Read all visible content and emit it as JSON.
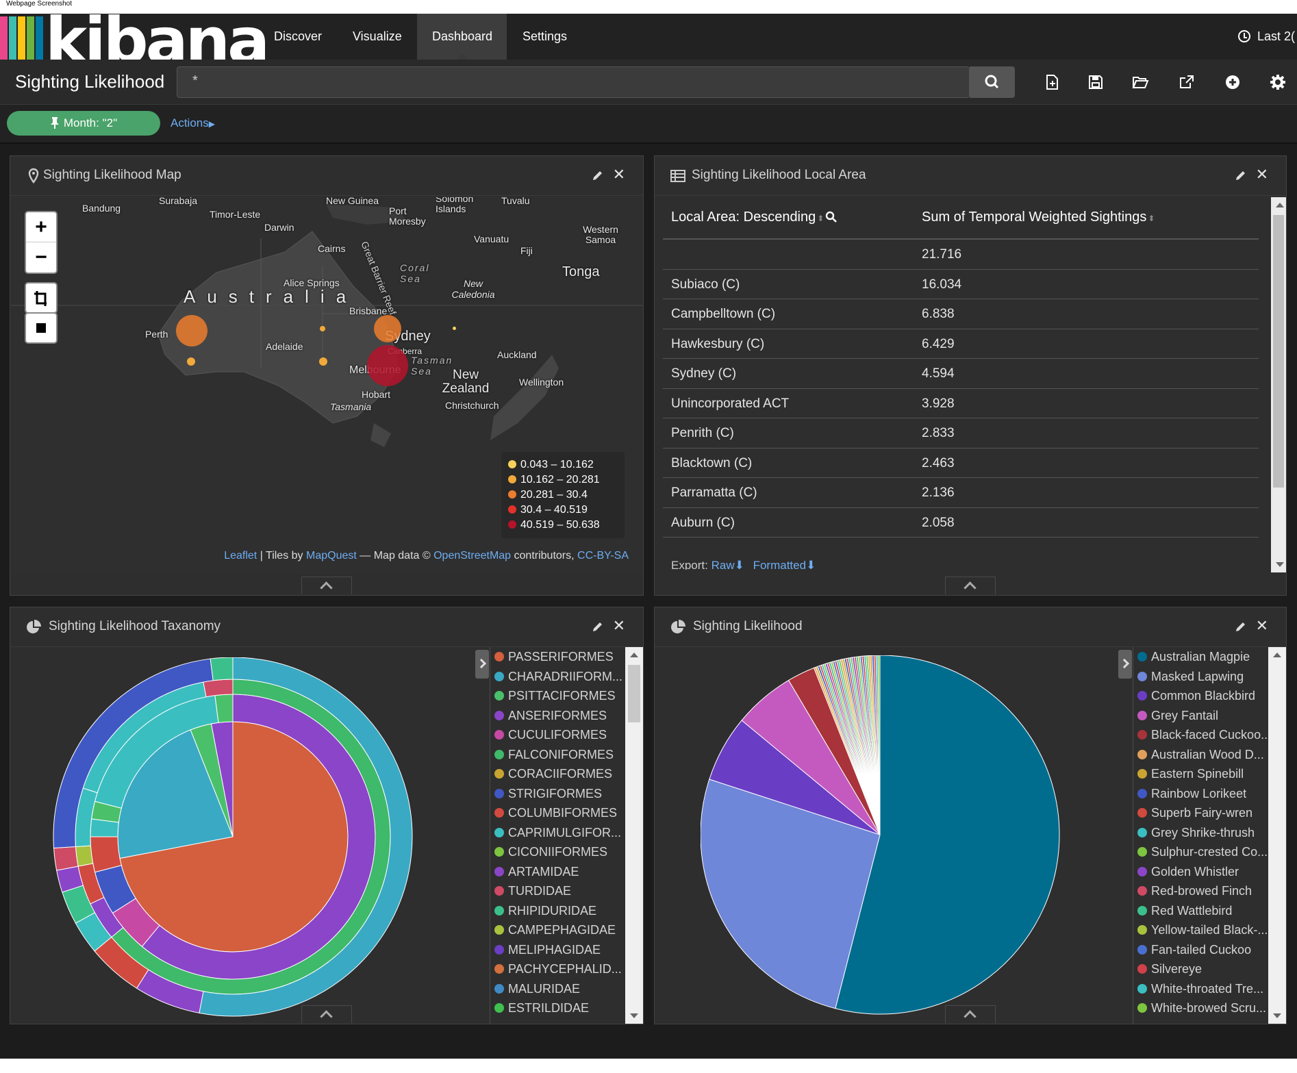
{
  "window": {
    "caption": "Webpage Screenshot"
  },
  "app": {
    "logo": "kibana",
    "logo_colors": [
      "#e8488b",
      "#3ebeb0",
      "#fec514",
      "#6db33f",
      "#0079a5"
    ],
    "nav": [
      "Discover",
      "Visualize",
      "Dashboard",
      "Settings"
    ],
    "active_nav": "Dashboard",
    "time_picker": "Last 2("
  },
  "toolbar": {
    "dashboard_title": "Sighting Likelihood",
    "search_value": "*",
    "icons": [
      "new-dashboard-icon",
      "save-icon",
      "open-icon",
      "share-icon",
      "add-visualization-icon",
      "settings-gear-icon"
    ]
  },
  "filters": {
    "pill_label": "Month: \"2\"",
    "actions_label": "Actions"
  },
  "map_panel": {
    "title": "Sighting Likelihood Map",
    "zoom_in": "+",
    "zoom_out": "−",
    "places": [
      "Bandung",
      "Surabaja",
      "Timor-Leste",
      "New Guinea",
      "Port Moresby",
      "Solomon Islands",
      "Tuvalu",
      "Darwin",
      "Western Samoa",
      "Vanuatu",
      "Fiji",
      "Cairns",
      "Great Barrier Reef",
      "Coral Sea",
      "Tonga",
      "Alice Springs",
      "New Caledonia",
      "Australia",
      "Brisbane",
      "Perth",
      "Sydney",
      "Adelaide",
      "Canberra",
      "Auckland",
      "Melbourne",
      "Tasman Sea",
      "New Zealand",
      "Wellington",
      "Hobart",
      "Christchurch",
      "Tasmania"
    ],
    "legend": [
      {
        "range": "0.043 – 10.162",
        "color": "#f6d25a"
      },
      {
        "range": "10.162 – 20.281",
        "color": "#f2a93b"
      },
      {
        "range": "20.281 – 30.4",
        "color": "#ec7d2e"
      },
      {
        "range": "30.4 – 40.519",
        "color": "#e3322b"
      },
      {
        "range": "40.519 – 50.638",
        "color": "#b5132a"
      }
    ],
    "attribution": {
      "leaflet": "Leaflet",
      "tiles_by": "| Tiles by",
      "mapquest": "MapQuest",
      "map_data": "— Map data ©",
      "osm": "OpenStreetMap",
      "contributors": "contributors,",
      "license": "CC-BY-SA"
    }
  },
  "table_panel": {
    "title": "Sighting Likelihood Local Area",
    "col_a": "Local Area: Descending",
    "col_b": "Sum of Temporal Weighted Sightings",
    "rows": [
      {
        "area": "",
        "value": "21.716"
      },
      {
        "area": "Subiaco (C)",
        "value": "16.034"
      },
      {
        "area": "Campbelltown (C)",
        "value": "6.838"
      },
      {
        "area": "Hawkesbury (C)",
        "value": "6.429"
      },
      {
        "area": "Sydney (C)",
        "value": "4.594"
      },
      {
        "area": "Unincorporated ACT",
        "value": "3.928"
      },
      {
        "area": "Penrith (C)",
        "value": "2.833"
      },
      {
        "area": "Blacktown (C)",
        "value": "2.463"
      },
      {
        "area": "Parramatta (C)",
        "value": "2.136"
      },
      {
        "area": "Auburn (C)",
        "value": "2.058"
      }
    ],
    "export_label": "Export:",
    "export_raw": "Raw",
    "export_formatted": "Formatted"
  },
  "taxonomy_panel": {
    "title": "Sighting Likelihood Taxanomy",
    "legend": [
      {
        "label": "PASSERIFORMES",
        "color": "#d35f3e"
      },
      {
        "label": "CHARADRIIFORM...",
        "color": "#3aa9c4"
      },
      {
        "label": "PSITTACIFORMES",
        "color": "#4bc06b"
      },
      {
        "label": "ANSERIFORMES",
        "color": "#8b45c8"
      },
      {
        "label": "CUCULIFORMES",
        "color": "#c64aa3"
      },
      {
        "label": "FALCONIFORMES",
        "color": "#3fb96a"
      },
      {
        "label": "CORACIIFORMES",
        "color": "#caa432"
      },
      {
        "label": "STRIGIFORMES",
        "color": "#4058c4"
      },
      {
        "label": "COLUMBIFORMES",
        "color": "#d14a3f"
      },
      {
        "label": "CAPRIMULGIFOR...",
        "color": "#3bbec0"
      },
      {
        "label": "CICONIIFORMES",
        "color": "#7dc441"
      },
      {
        "label": "ARTAMIDAE",
        "color": "#8b45c8"
      },
      {
        "label": "TURDIDAE",
        "color": "#cf4a64"
      },
      {
        "label": "RHIPIDURIDAE",
        "color": "#3bc08c"
      },
      {
        "label": "CAMPEPHAGIDAE",
        "color": "#a8c23e"
      },
      {
        "label": "MELIPHAGIDAE",
        "color": "#6b3ec4"
      },
      {
        "label": "PACHYCEPHALID...",
        "color": "#d2703e"
      },
      {
        "label": "MALURIDAE",
        "color": "#3f8ac4"
      },
      {
        "label": "ESTRILDIDAE",
        "color": "#3fc051"
      }
    ]
  },
  "likelihood_panel": {
    "title": "Sighting Likelihood",
    "legend": [
      {
        "label": "Australian Magpie",
        "color": "#006d8f"
      },
      {
        "label": "Masked Lapwing",
        "color": "#6f87d8"
      },
      {
        "label": "Common Blackbird",
        "color": "#6a3ec4"
      },
      {
        "label": "Grey Fantail",
        "color": "#c45ac0"
      },
      {
        "label": "Black-faced Cuckoo...",
        "color": "#a8333a"
      },
      {
        "label": "Australian Wood D...",
        "color": "#e0a05a"
      },
      {
        "label": "Eastern Spinebill",
        "color": "#caa432"
      },
      {
        "label": "Rainbow Lorikeet",
        "color": "#4058c4"
      },
      {
        "label": "Superb Fairy-wren",
        "color": "#d14a3f"
      },
      {
        "label": "Grey Shrike-thrush",
        "color": "#3bbec0"
      },
      {
        "label": "Sulphur-crested Co...",
        "color": "#7dc441"
      },
      {
        "label": "Golden Whistler",
        "color": "#8b45c8"
      },
      {
        "label": "Red-browed Finch",
        "color": "#cf4a64"
      },
      {
        "label": "Red Wattlebird",
        "color": "#3bc08c"
      },
      {
        "label": "Yellow-tailed Black-...",
        "color": "#a8c23e"
      },
      {
        "label": "Fan-tailed Cuckoo",
        "color": "#4a6fd0"
      },
      {
        "label": "Silvereye",
        "color": "#d0414a"
      },
      {
        "label": "White-throated Tre...",
        "color": "#3bbec0"
      },
      {
        "label": "White-browed Scru...",
        "color": "#7dc441"
      }
    ]
  }
}
